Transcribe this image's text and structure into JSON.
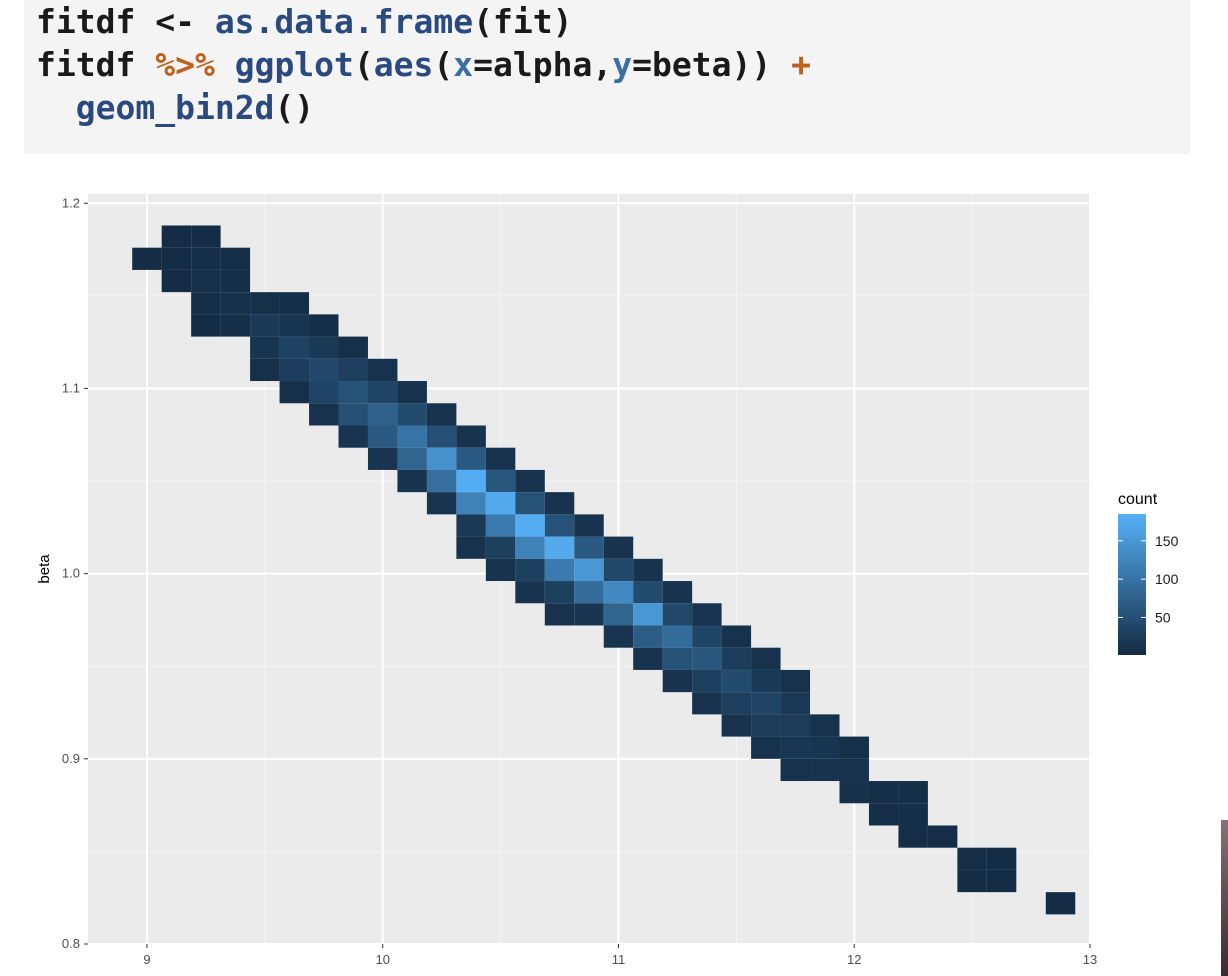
{
  "code": {
    "line1": [
      {
        "t": "fitdf <- ",
        "c": "plain"
      },
      {
        "t": "as.data.frame",
        "c": "fn"
      },
      {
        "t": "(fit)",
        "c": "plain"
      }
    ],
    "line2": [
      {
        "t": "fitdf ",
        "c": "plain"
      },
      {
        "t": "%>%",
        "c": "op"
      },
      {
        "t": " ",
        "c": "plain"
      },
      {
        "t": "ggplot",
        "c": "fn"
      },
      {
        "t": "(",
        "c": "plain"
      },
      {
        "t": "aes",
        "c": "fn"
      },
      {
        "t": "(",
        "c": "plain"
      },
      {
        "t": "x",
        "c": "arg"
      },
      {
        "t": "=alpha,",
        "c": "plain"
      },
      {
        "t": "y",
        "c": "arg"
      },
      {
        "t": "=beta)) ",
        "c": "plain"
      },
      {
        "t": "+",
        "c": "op"
      }
    ],
    "line3": [
      {
        "t": "  ",
        "c": "plain"
      },
      {
        "t": "geom_bin2d",
        "c": "fn"
      },
      {
        "t": "()",
        "c": "plain"
      }
    ]
  },
  "chart_data": {
    "type": "heatmap",
    "xlabel": "",
    "ylabel": "beta",
    "xlim": [
      8.75,
      13.0
    ],
    "ylim": [
      0.8,
      1.205
    ],
    "x_ticks": [
      9,
      10,
      11,
      12,
      13
    ],
    "y_ticks": [
      0.8,
      0.9,
      1.0,
      1.1,
      1.2
    ],
    "grid": true,
    "bin_width_x": 0.125,
    "bin_width_y": 0.012,
    "legend": {
      "title": "count",
      "ticks": [
        50,
        100,
        150
      ],
      "min": 1,
      "max": 185,
      "position": "right",
      "low_color": "#132b43",
      "high_color": "#56b1f7"
    },
    "bins": [
      {
        "x": 9.0,
        "y": 1.17,
        "count": 3
      },
      {
        "x": 9.125,
        "y": 1.182,
        "count": 3
      },
      {
        "x": 9.125,
        "y": 1.17,
        "count": 4
      },
      {
        "x": 9.125,
        "y": 1.158,
        "count": 3
      },
      {
        "x": 9.25,
        "y": 1.182,
        "count": 4
      },
      {
        "x": 9.25,
        "y": 1.17,
        "count": 6
      },
      {
        "x": 9.25,
        "y": 1.158,
        "count": 8
      },
      {
        "x": 9.25,
        "y": 1.146,
        "count": 6
      },
      {
        "x": 9.25,
        "y": 1.134,
        "count": 4
      },
      {
        "x": 9.375,
        "y": 1.17,
        "count": 5
      },
      {
        "x": 9.375,
        "y": 1.158,
        "count": 7
      },
      {
        "x": 9.375,
        "y": 1.146,
        "count": 9
      },
      {
        "x": 9.375,
        "y": 1.134,
        "count": 6
      },
      {
        "x": 9.5,
        "y": 1.146,
        "count": 8
      },
      {
        "x": 9.5,
        "y": 1.134,
        "count": 22
      },
      {
        "x": 9.5,
        "y": 1.122,
        "count": 16
      },
      {
        "x": 9.5,
        "y": 1.11,
        "count": 8
      },
      {
        "x": 9.625,
        "y": 1.146,
        "count": 6
      },
      {
        "x": 9.625,
        "y": 1.134,
        "count": 16
      },
      {
        "x": 9.625,
        "y": 1.122,
        "count": 32
      },
      {
        "x": 9.625,
        "y": 1.11,
        "count": 26
      },
      {
        "x": 9.625,
        "y": 1.098,
        "count": 8
      },
      {
        "x": 9.75,
        "y": 1.134,
        "count": 6
      },
      {
        "x": 9.75,
        "y": 1.122,
        "count": 20
      },
      {
        "x": 9.75,
        "y": 1.11,
        "count": 42
      },
      {
        "x": 9.75,
        "y": 1.098,
        "count": 36
      },
      {
        "x": 9.75,
        "y": 1.086,
        "count": 10
      },
      {
        "x": 9.875,
        "y": 1.122,
        "count": 8
      },
      {
        "x": 9.875,
        "y": 1.11,
        "count": 28
      },
      {
        "x": 9.875,
        "y": 1.098,
        "count": 55
      },
      {
        "x": 9.875,
        "y": 1.086,
        "count": 52
      },
      {
        "x": 9.875,
        "y": 1.074,
        "count": 14
      },
      {
        "x": 10.0,
        "y": 1.11,
        "count": 10
      },
      {
        "x": 10.0,
        "y": 1.098,
        "count": 35
      },
      {
        "x": 10.0,
        "y": 1.086,
        "count": 75
      },
      {
        "x": 10.0,
        "y": 1.074,
        "count": 65
      },
      {
        "x": 10.0,
        "y": 1.062,
        "count": 14
      },
      {
        "x": 10.125,
        "y": 1.098,
        "count": 10
      },
      {
        "x": 10.125,
        "y": 1.086,
        "count": 45
      },
      {
        "x": 10.125,
        "y": 1.074,
        "count": 100
      },
      {
        "x": 10.125,
        "y": 1.062,
        "count": 80
      },
      {
        "x": 10.125,
        "y": 1.05,
        "count": 12
      },
      {
        "x": 10.25,
        "y": 1.086,
        "count": 12
      },
      {
        "x": 10.25,
        "y": 1.074,
        "count": 50
      },
      {
        "x": 10.25,
        "y": 1.062,
        "count": 140
      },
      {
        "x": 10.25,
        "y": 1.05,
        "count": 95
      },
      {
        "x": 10.25,
        "y": 1.038,
        "count": 14
      },
      {
        "x": 10.375,
        "y": 1.074,
        "count": 12
      },
      {
        "x": 10.375,
        "y": 1.062,
        "count": 65
      },
      {
        "x": 10.375,
        "y": 1.05,
        "count": 180
      },
      {
        "x": 10.375,
        "y": 1.038,
        "count": 120
      },
      {
        "x": 10.375,
        "y": 1.026,
        "count": 20
      },
      {
        "x": 10.375,
        "y": 1.014,
        "count": 10
      },
      {
        "x": 10.5,
        "y": 1.062,
        "count": 10
      },
      {
        "x": 10.5,
        "y": 1.05,
        "count": 60
      },
      {
        "x": 10.5,
        "y": 1.038,
        "count": 175
      },
      {
        "x": 10.5,
        "y": 1.026,
        "count": 110
      },
      {
        "x": 10.5,
        "y": 1.014,
        "count": 30
      },
      {
        "x": 10.5,
        "y": 1.002,
        "count": 12
      },
      {
        "x": 10.625,
        "y": 1.05,
        "count": 12
      },
      {
        "x": 10.625,
        "y": 1.038,
        "count": 55
      },
      {
        "x": 10.625,
        "y": 1.026,
        "count": 180
      },
      {
        "x": 10.625,
        "y": 1.014,
        "count": 120
      },
      {
        "x": 10.625,
        "y": 1.002,
        "count": 30
      },
      {
        "x": 10.625,
        "y": 0.99,
        "count": 12
      },
      {
        "x": 10.75,
        "y": 1.038,
        "count": 12
      },
      {
        "x": 10.75,
        "y": 1.026,
        "count": 55
      },
      {
        "x": 10.75,
        "y": 1.014,
        "count": 175
      },
      {
        "x": 10.75,
        "y": 1.002,
        "count": 110
      },
      {
        "x": 10.75,
        "y": 0.99,
        "count": 30
      },
      {
        "x": 10.75,
        "y": 0.978,
        "count": 12
      },
      {
        "x": 10.875,
        "y": 1.026,
        "count": 12
      },
      {
        "x": 10.875,
        "y": 1.014,
        "count": 65
      },
      {
        "x": 10.875,
        "y": 1.002,
        "count": 150
      },
      {
        "x": 10.875,
        "y": 0.99,
        "count": 90
      },
      {
        "x": 10.875,
        "y": 0.978,
        "count": 16
      },
      {
        "x": 11.0,
        "y": 1.014,
        "count": 12
      },
      {
        "x": 11.0,
        "y": 1.002,
        "count": 40
      },
      {
        "x": 11.0,
        "y": 0.99,
        "count": 130
      },
      {
        "x": 11.0,
        "y": 0.978,
        "count": 80
      },
      {
        "x": 11.0,
        "y": 0.966,
        "count": 14
      },
      {
        "x": 11.125,
        "y": 1.002,
        "count": 12
      },
      {
        "x": 11.125,
        "y": 0.99,
        "count": 45
      },
      {
        "x": 11.125,
        "y": 0.978,
        "count": 150
      },
      {
        "x": 11.125,
        "y": 0.966,
        "count": 70
      },
      {
        "x": 11.125,
        "y": 0.954,
        "count": 12
      },
      {
        "x": 11.25,
        "y": 0.99,
        "count": 12
      },
      {
        "x": 11.25,
        "y": 0.978,
        "count": 40
      },
      {
        "x": 11.25,
        "y": 0.966,
        "count": 90
      },
      {
        "x": 11.25,
        "y": 0.954,
        "count": 55
      },
      {
        "x": 11.25,
        "y": 0.942,
        "count": 12
      },
      {
        "x": 11.375,
        "y": 0.978,
        "count": 14
      },
      {
        "x": 11.375,
        "y": 0.966,
        "count": 35
      },
      {
        "x": 11.375,
        "y": 0.954,
        "count": 60
      },
      {
        "x": 11.375,
        "y": 0.942,
        "count": 30
      },
      {
        "x": 11.375,
        "y": 0.93,
        "count": 10
      },
      {
        "x": 11.5,
        "y": 0.966,
        "count": 10
      },
      {
        "x": 11.5,
        "y": 0.954,
        "count": 25
      },
      {
        "x": 11.5,
        "y": 0.942,
        "count": 45
      },
      {
        "x": 11.5,
        "y": 0.93,
        "count": 30
      },
      {
        "x": 11.5,
        "y": 0.918,
        "count": 12
      },
      {
        "x": 11.625,
        "y": 0.954,
        "count": 10
      },
      {
        "x": 11.625,
        "y": 0.942,
        "count": 20
      },
      {
        "x": 11.625,
        "y": 0.93,
        "count": 35
      },
      {
        "x": 11.625,
        "y": 0.918,
        "count": 25
      },
      {
        "x": 11.625,
        "y": 0.906,
        "count": 10
      },
      {
        "x": 11.75,
        "y": 0.942,
        "count": 10
      },
      {
        "x": 11.75,
        "y": 0.93,
        "count": 20
      },
      {
        "x": 11.75,
        "y": 0.918,
        "count": 25
      },
      {
        "x": 11.75,
        "y": 0.906,
        "count": 18
      },
      {
        "x": 11.75,
        "y": 0.894,
        "count": 10
      },
      {
        "x": 11.875,
        "y": 0.918,
        "count": 10
      },
      {
        "x": 11.875,
        "y": 0.906,
        "count": 15
      },
      {
        "x": 11.875,
        "y": 0.894,
        "count": 12
      },
      {
        "x": 12.0,
        "y": 0.906,
        "count": 8
      },
      {
        "x": 12.0,
        "y": 0.894,
        "count": 10
      },
      {
        "x": 12.0,
        "y": 0.882,
        "count": 8
      },
      {
        "x": 12.125,
        "y": 0.882,
        "count": 6
      },
      {
        "x": 12.125,
        "y": 0.87,
        "count": 5
      },
      {
        "x": 12.25,
        "y": 0.882,
        "count": 6
      },
      {
        "x": 12.25,
        "y": 0.87,
        "count": 7
      },
      {
        "x": 12.25,
        "y": 0.858,
        "count": 5
      },
      {
        "x": 12.375,
        "y": 0.858,
        "count": 5
      },
      {
        "x": 12.5,
        "y": 0.846,
        "count": 5
      },
      {
        "x": 12.5,
        "y": 0.834,
        "count": 4
      },
      {
        "x": 12.625,
        "y": 0.846,
        "count": 4
      },
      {
        "x": 12.625,
        "y": 0.834,
        "count": 4
      },
      {
        "x": 12.875,
        "y": 0.822,
        "count": 3
      }
    ]
  }
}
